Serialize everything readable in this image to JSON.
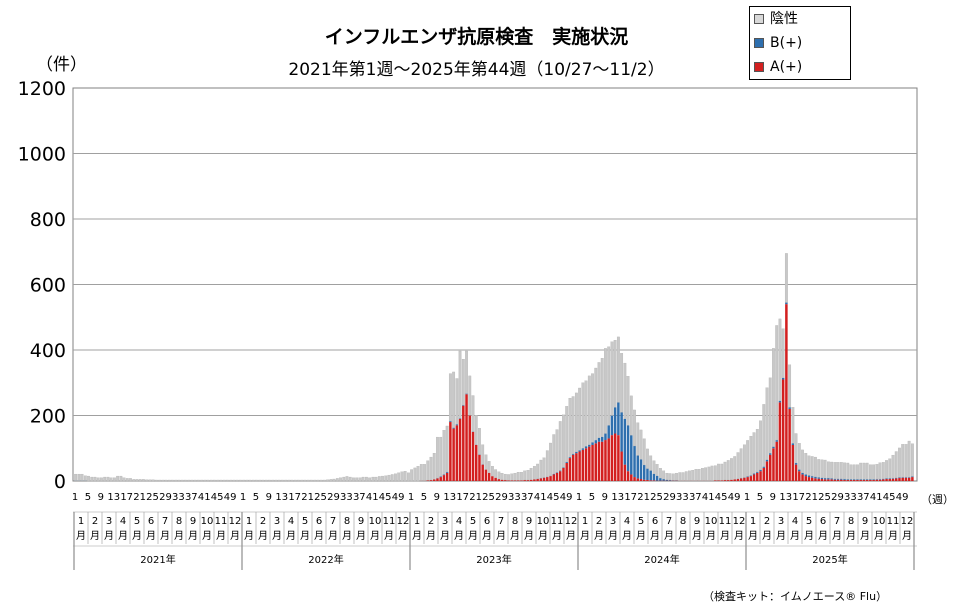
{
  "header": {
    "title": "インフルエンザ抗原検査　実施状況",
    "subtitle": "2021年第1週～2025年第44週（10/27～11/2）",
    "unit": "（件）",
    "week_unit": "（週）",
    "footnote": "（検査キット：イムノエース® Flu）"
  },
  "colors": {
    "negative": "#c8c8c8",
    "b_positive": "#2e6fae",
    "a_positive": "#d32020",
    "grid": "#a0a0a0"
  },
  "chart_data": {
    "type": "bar",
    "stacked": true,
    "title": "インフルエンザ抗原検査　実施状況",
    "subtitle": "2021年第1週～2025年第44週（10/27～11/2）",
    "ylabel": "（件）",
    "xlabel": "（週）",
    "ylim": [
      0,
      1200
    ],
    "yticks": [
      "0",
      "200",
      "400",
      "600",
      "800",
      "1000",
      "1200"
    ],
    "grid": true,
    "legend_position": "top-right",
    "legend": [
      "陰性",
      "B(+)",
      "A(+)"
    ],
    "years": [
      "2021年",
      "2022年",
      "2023年",
      "2024年",
      "2025年"
    ],
    "week_tick_labels": [
      "1",
      "5",
      "9",
      "13",
      "17",
      "21",
      "25",
      "29",
      "33",
      "37",
      "41",
      "45",
      "49"
    ],
    "month_labels": [
      "1月",
      "2月",
      "3月",
      "4月",
      "5月",
      "6月",
      "7月",
      "8月",
      "9月",
      "10月",
      "11月",
      "12月"
    ],
    "weeks_per_year": 52,
    "last_week_2025": 44,
    "series": [
      {
        "name": "陰性",
        "values": [
          20,
          20,
          20,
          15,
          15,
          12,
          12,
          10,
          10,
          12,
          12,
          10,
          10,
          15,
          15,
          10,
          8,
          8,
          5,
          5,
          5,
          5,
          4,
          4,
          4,
          3,
          3,
          3,
          3,
          3,
          3,
          3,
          3,
          3,
          3,
          3,
          3,
          3,
          3,
          3,
          3,
          3,
          3,
          3,
          3,
          3,
          3,
          3,
          3,
          3,
          3,
          3,
          3,
          3,
          3,
          3,
          3,
          3,
          3,
          3,
          3,
          3,
          3,
          3,
          3,
          3,
          3,
          3,
          3,
          3,
          3,
          3,
          3,
          3,
          3,
          3,
          3,
          3,
          4,
          5,
          6,
          8,
          10,
          12,
          14,
          12,
          10,
          10,
          10,
          12,
          12,
          10,
          12,
          12,
          14,
          15,
          16,
          18,
          20,
          22,
          25,
          28,
          30,
          25,
          35,
          40,
          45,
          50,
          50,
          60,
          70,
          80,
          125,
          120,
          135,
          140,
          145,
          170,
          140,
          205,
          140,
          130,
          120,
          110,
          90,
          80,
          60,
          45,
          35,
          30,
          25,
          22,
          20,
          18,
          18,
          20,
          22,
          25,
          25,
          28,
          30,
          35,
          40,
          45,
          55,
          60,
          80,
          100,
          120,
          130,
          150,
          160,
          170,
          180,
          175,
          180,
          190,
          200,
          200,
          210,
          210,
          220,
          230,
          240,
          260,
          240,
          225,
          205,
          200,
          180,
          170,
          150,
          120,
          110,
          100,
          90,
          80,
          60,
          45,
          40,
          35,
          30,
          25,
          20,
          20,
          20,
          22,
          25,
          25,
          28,
          30,
          32,
          35,
          35,
          38,
          40,
          42,
          45,
          45,
          50,
          50,
          55,
          60,
          65,
          70,
          80,
          90,
          100,
          110,
          120,
          125,
          130,
          150,
          190,
          220,
          230,
          300,
          350,
          250,
          150,
          150,
          130,
          110,
          90,
          80,
          70,
          65,
          60,
          60,
          60,
          55,
          55,
          55,
          50,
          50,
          50,
          50,
          50,
          50,
          50,
          45,
          45,
          45,
          50,
          50,
          50,
          45,
          45,
          45,
          50,
          50,
          55,
          60,
          70,
          80,
          90,
          100,
          100,
          110,
          100
        ]
      },
      {
        "name": "B(+)",
        "values": [
          1,
          1,
          1,
          1,
          0,
          0,
          0,
          0,
          0,
          0,
          0,
          0,
          0,
          0,
          0,
          0,
          0,
          0,
          0,
          0,
          0,
          0,
          0,
          0,
          0,
          0,
          0,
          0,
          0,
          0,
          0,
          0,
          0,
          0,
          0,
          0,
          0,
          0,
          0,
          0,
          0,
          0,
          0,
          0,
          0,
          0,
          0,
          0,
          0,
          0,
          0,
          0,
          0,
          0,
          0,
          0,
          0,
          0,
          0,
          0,
          0,
          0,
          0,
          0,
          0,
          0,
          0,
          0,
          0,
          0,
          0,
          0,
          0,
          0,
          0,
          0,
          0,
          0,
          0,
          0,
          0,
          0,
          0,
          0,
          0,
          0,
          0,
          0,
          0,
          0,
          0,
          0,
          0,
          0,
          0,
          0,
          0,
          0,
          0,
          0,
          0,
          0,
          0,
          0,
          0,
          0,
          0,
          0,
          0,
          0,
          0,
          0,
          1,
          2,
          2,
          3,
          3,
          3,
          3,
          2,
          2,
          2,
          1,
          1,
          1,
          1,
          1,
          0,
          0,
          0,
          0,
          0,
          0,
          0,
          0,
          0,
          0,
          0,
          0,
          0,
          0,
          0,
          0,
          1,
          1,
          1,
          1,
          1,
          2,
          2,
          2,
          2,
          3,
          3,
          3,
          4,
          4,
          5,
          6,
          6,
          8,
          10,
          12,
          15,
          20,
          40,
          60,
          80,
          100,
          120,
          140,
          140,
          120,
          95,
          70,
          60,
          45,
          35,
          30,
          20,
          15,
          8,
          5,
          3,
          2,
          1,
          1,
          0,
          0,
          0,
          0,
          0,
          0,
          0,
          0,
          0,
          0,
          0,
          0,
          0,
          0,
          0,
          0,
          0,
          0,
          1,
          1,
          1,
          2,
          2,
          3,
          3,
          4,
          4,
          5,
          5,
          5,
          5,
          5,
          5,
          5,
          5,
          5,
          5,
          5,
          5,
          5,
          5,
          5,
          5,
          4,
          4,
          4,
          4,
          3,
          3,
          3,
          3,
          3,
          2,
          2,
          2,
          2,
          2,
          2,
          2,
          2,
          2,
          2,
          2,
          2,
          2,
          2,
          2,
          2,
          2,
          2,
          2,
          2,
          2
        ]
      },
      {
        "name": "A(+)",
        "values": [
          0,
          0,
          0,
          0,
          0,
          0,
          0,
          0,
          0,
          0,
          0,
          0,
          0,
          0,
          0,
          0,
          0,
          0,
          0,
          0,
          0,
          0,
          0,
          0,
          0,
          0,
          0,
          0,
          0,
          0,
          0,
          0,
          0,
          0,
          0,
          0,
          0,
          0,
          0,
          0,
          0,
          0,
          0,
          0,
          0,
          0,
          0,
          0,
          0,
          0,
          0,
          0,
          0,
          0,
          0,
          0,
          0,
          0,
          0,
          0,
          0,
          0,
          0,
          0,
          0,
          0,
          0,
          0,
          0,
          0,
          0,
          0,
          0,
          0,
          0,
          0,
          0,
          0,
          0,
          0,
          0,
          0,
          0,
          0,
          0,
          0,
          0,
          0,
          0,
          0,
          0,
          0,
          0,
          0,
          0,
          0,
          0,
          0,
          0,
          0,
          0,
          0,
          0,
          0,
          0,
          0,
          0,
          1,
          1,
          2,
          3,
          5,
          8,
          12,
          18,
          25,
          180,
          160,
          170,
          190,
          230,
          265,
          200,
          150,
          110,
          80,
          50,
          35,
          25,
          15,
          10,
          6,
          4,
          3,
          2,
          2,
          2,
          2,
          2,
          3,
          3,
          4,
          5,
          6,
          8,
          10,
          12,
          15,
          20,
          25,
          30,
          40,
          55,
          70,
          80,
          85,
          90,
          95,
          100,
          105,
          110,
          115,
          120,
          120,
          125,
          130,
          140,
          145,
          140,
          90,
          50,
          30,
          20,
          12,
          8,
          6,
          4,
          3,
          2,
          2,
          1,
          1,
          1,
          1,
          1,
          1,
          1,
          1,
          1,
          1,
          1,
          1,
          1,
          1,
          1,
          1,
          1,
          1,
          2,
          2,
          2,
          3,
          3,
          4,
          5,
          6,
          8,
          10,
          12,
          15,
          20,
          25,
          30,
          40,
          60,
          80,
          100,
          120,
          240,
          310,
          540,
          220,
          110,
          50,
          30,
          20,
          15,
          12,
          10,
          8,
          7,
          6,
          5,
          5,
          5,
          4,
          4,
          4,
          3,
          3,
          3,
          3,
          3,
          3,
          3,
          3,
          3,
          3,
          4,
          4,
          5,
          6,
          6,
          7,
          8,
          9,
          10,
          10,
          10,
          12,
          15,
          20,
          30,
          60
        ]
      }
    ]
  }
}
